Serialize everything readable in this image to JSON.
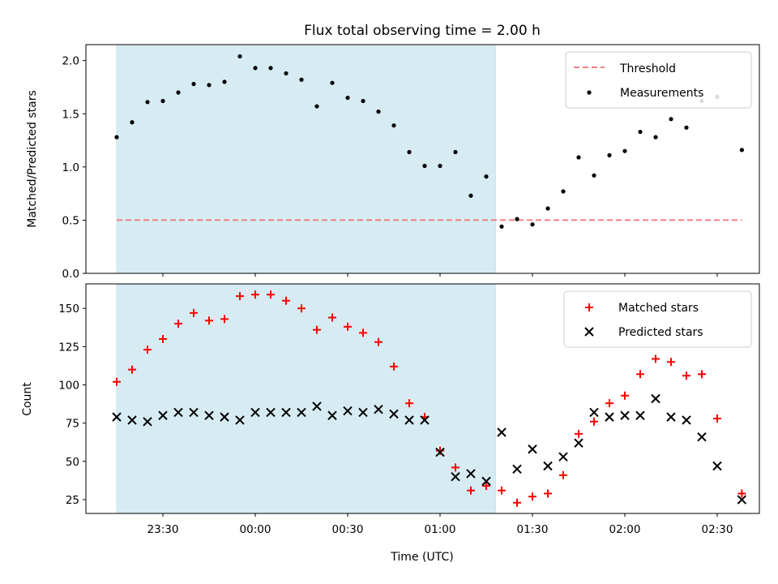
{
  "title": "Flux total observing time = 2.00 h",
  "xlabel": "Time (UTC)",
  "x_ticks": [
    "23:30",
    "00:00",
    "00:30",
    "01:00",
    "01:30",
    "02:00",
    "02:30"
  ],
  "colors": {
    "shade": "#add8e6",
    "threshold": "#f08080",
    "matched": "#ff0000",
    "predicted": "#000000",
    "measurement": "#000000"
  },
  "chart_data": [
    {
      "type": "scatter",
      "ylabel": "Matched/Predicted stars",
      "ylim": [
        0,
        2.15
      ],
      "y_ticks": [
        "0.0",
        "0.5",
        "1.0",
        "1.5",
        "2.0"
      ],
      "xlim": [
        "23:05",
        "02:45"
      ],
      "grid": false,
      "legend_position": "top-right",
      "shaded_interval": [
        "23:15",
        "01:18"
      ],
      "threshold": {
        "name": "Threshold",
        "value": 0.5,
        "x": [
          "23:15",
          "02:38"
        ]
      },
      "series": [
        {
          "name": "Measurements",
          "x": [
            "23:15",
            "23:20",
            "23:25",
            "23:30",
            "23:35",
            "23:40",
            "23:45",
            "23:50",
            "23:55",
            "00:00",
            "00:05",
            "00:10",
            "00:15",
            "00:20",
            "00:25",
            "00:30",
            "00:35",
            "00:40",
            "00:45",
            "00:50",
            "00:55",
            "01:00",
            "01:05",
            "01:10",
            "01:15",
            "01:20",
            "01:25",
            "01:30",
            "01:35",
            "01:40",
            "01:45",
            "01:50",
            "01:55",
            "02:00",
            "02:05",
            "02:10",
            "02:15",
            "02:20",
            "02:25",
            "02:30",
            "02:38"
          ],
          "values": [
            1.28,
            1.42,
            1.61,
            1.62,
            1.7,
            1.78,
            1.77,
            1.8,
            2.04,
            1.93,
            1.93,
            1.88,
            1.82,
            1.57,
            1.79,
            1.65,
            1.62,
            1.52,
            1.39,
            1.14,
            1.01,
            1.01,
            1.14,
            0.73,
            0.91,
            0.44,
            0.51,
            0.46,
            0.61,
            0.77,
            1.09,
            0.92,
            1.11,
            1.15,
            1.33,
            1.28,
            1.45,
            1.37,
            1.62,
            1.66,
            1.16
          ]
        }
      ]
    },
    {
      "type": "scatter",
      "ylabel": "Count",
      "ylim": [
        16,
        166
      ],
      "y_ticks": [
        "25",
        "50",
        "75",
        "100",
        "125",
        "150"
      ],
      "xlim": [
        "23:05",
        "02:45"
      ],
      "grid": false,
      "legend_position": "top-right",
      "shaded_interval": [
        "23:15",
        "01:18"
      ],
      "series": [
        {
          "name": "Matched stars",
          "x": [
            "23:15",
            "23:20",
            "23:25",
            "23:30",
            "23:35",
            "23:40",
            "23:45",
            "23:50",
            "23:55",
            "00:00",
            "00:05",
            "00:10",
            "00:15",
            "00:20",
            "00:25",
            "00:30",
            "00:35",
            "00:40",
            "00:45",
            "00:50",
            "00:55",
            "01:00",
            "01:05",
            "01:10",
            "01:15",
            "01:20",
            "01:25",
            "01:30",
            "01:35",
            "01:40",
            "01:45",
            "01:50",
            "01:55",
            "02:00",
            "02:05",
            "02:10",
            "02:15",
            "02:20",
            "02:25",
            "02:30",
            "02:38"
          ],
          "values": [
            102,
            110,
            123,
            130,
            140,
            147,
            142,
            143,
            158,
            159,
            159,
            155,
            150,
            136,
            144,
            138,
            134,
            128,
            112,
            88,
            79,
            57,
            46,
            31,
            34,
            31,
            23,
            27,
            29,
            41,
            68,
            76,
            88,
            93,
            107,
            117,
            115,
            106,
            107,
            78,
            29
          ]
        },
        {
          "name": "Predicted stars",
          "x": [
            "23:15",
            "23:20",
            "23:25",
            "23:30",
            "23:35",
            "23:40",
            "23:45",
            "23:50",
            "23:55",
            "00:00",
            "00:05",
            "00:10",
            "00:15",
            "00:20",
            "00:25",
            "00:30",
            "00:35",
            "00:40",
            "00:45",
            "00:50",
            "00:55",
            "01:00",
            "01:05",
            "01:10",
            "01:15",
            "01:20",
            "01:25",
            "01:30",
            "01:35",
            "01:40",
            "01:45",
            "01:50",
            "01:55",
            "02:00",
            "02:05",
            "02:10",
            "02:15",
            "02:20",
            "02:25",
            "02:30",
            "02:38"
          ],
          "values": [
            79,
            77,
            76,
            80,
            82,
            82,
            80,
            79,
            77,
            82,
            82,
            82,
            82,
            86,
            80,
            83,
            82,
            84,
            81,
            77,
            77,
            56,
            40,
            42,
            37,
            69,
            45,
            58,
            47,
            53,
            62,
            82,
            79,
            80,
            80,
            91,
            79,
            77,
            66,
            47,
            25
          ]
        }
      ]
    }
  ]
}
